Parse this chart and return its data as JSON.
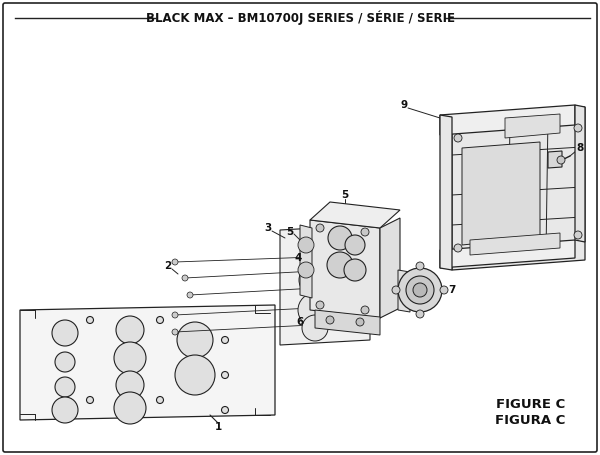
{
  "title": "BLACK MAX – BM10700J SERIES / SÉRIE / SERIE",
  "figure_label": "FIGURE C",
  "figura_label": "FIGURA C",
  "bg_color": "#ffffff",
  "line_color": "#222222",
  "title_fontsize": 8.5,
  "label_fontsize": 7.5,
  "figure_label_fontsize": 9.5
}
